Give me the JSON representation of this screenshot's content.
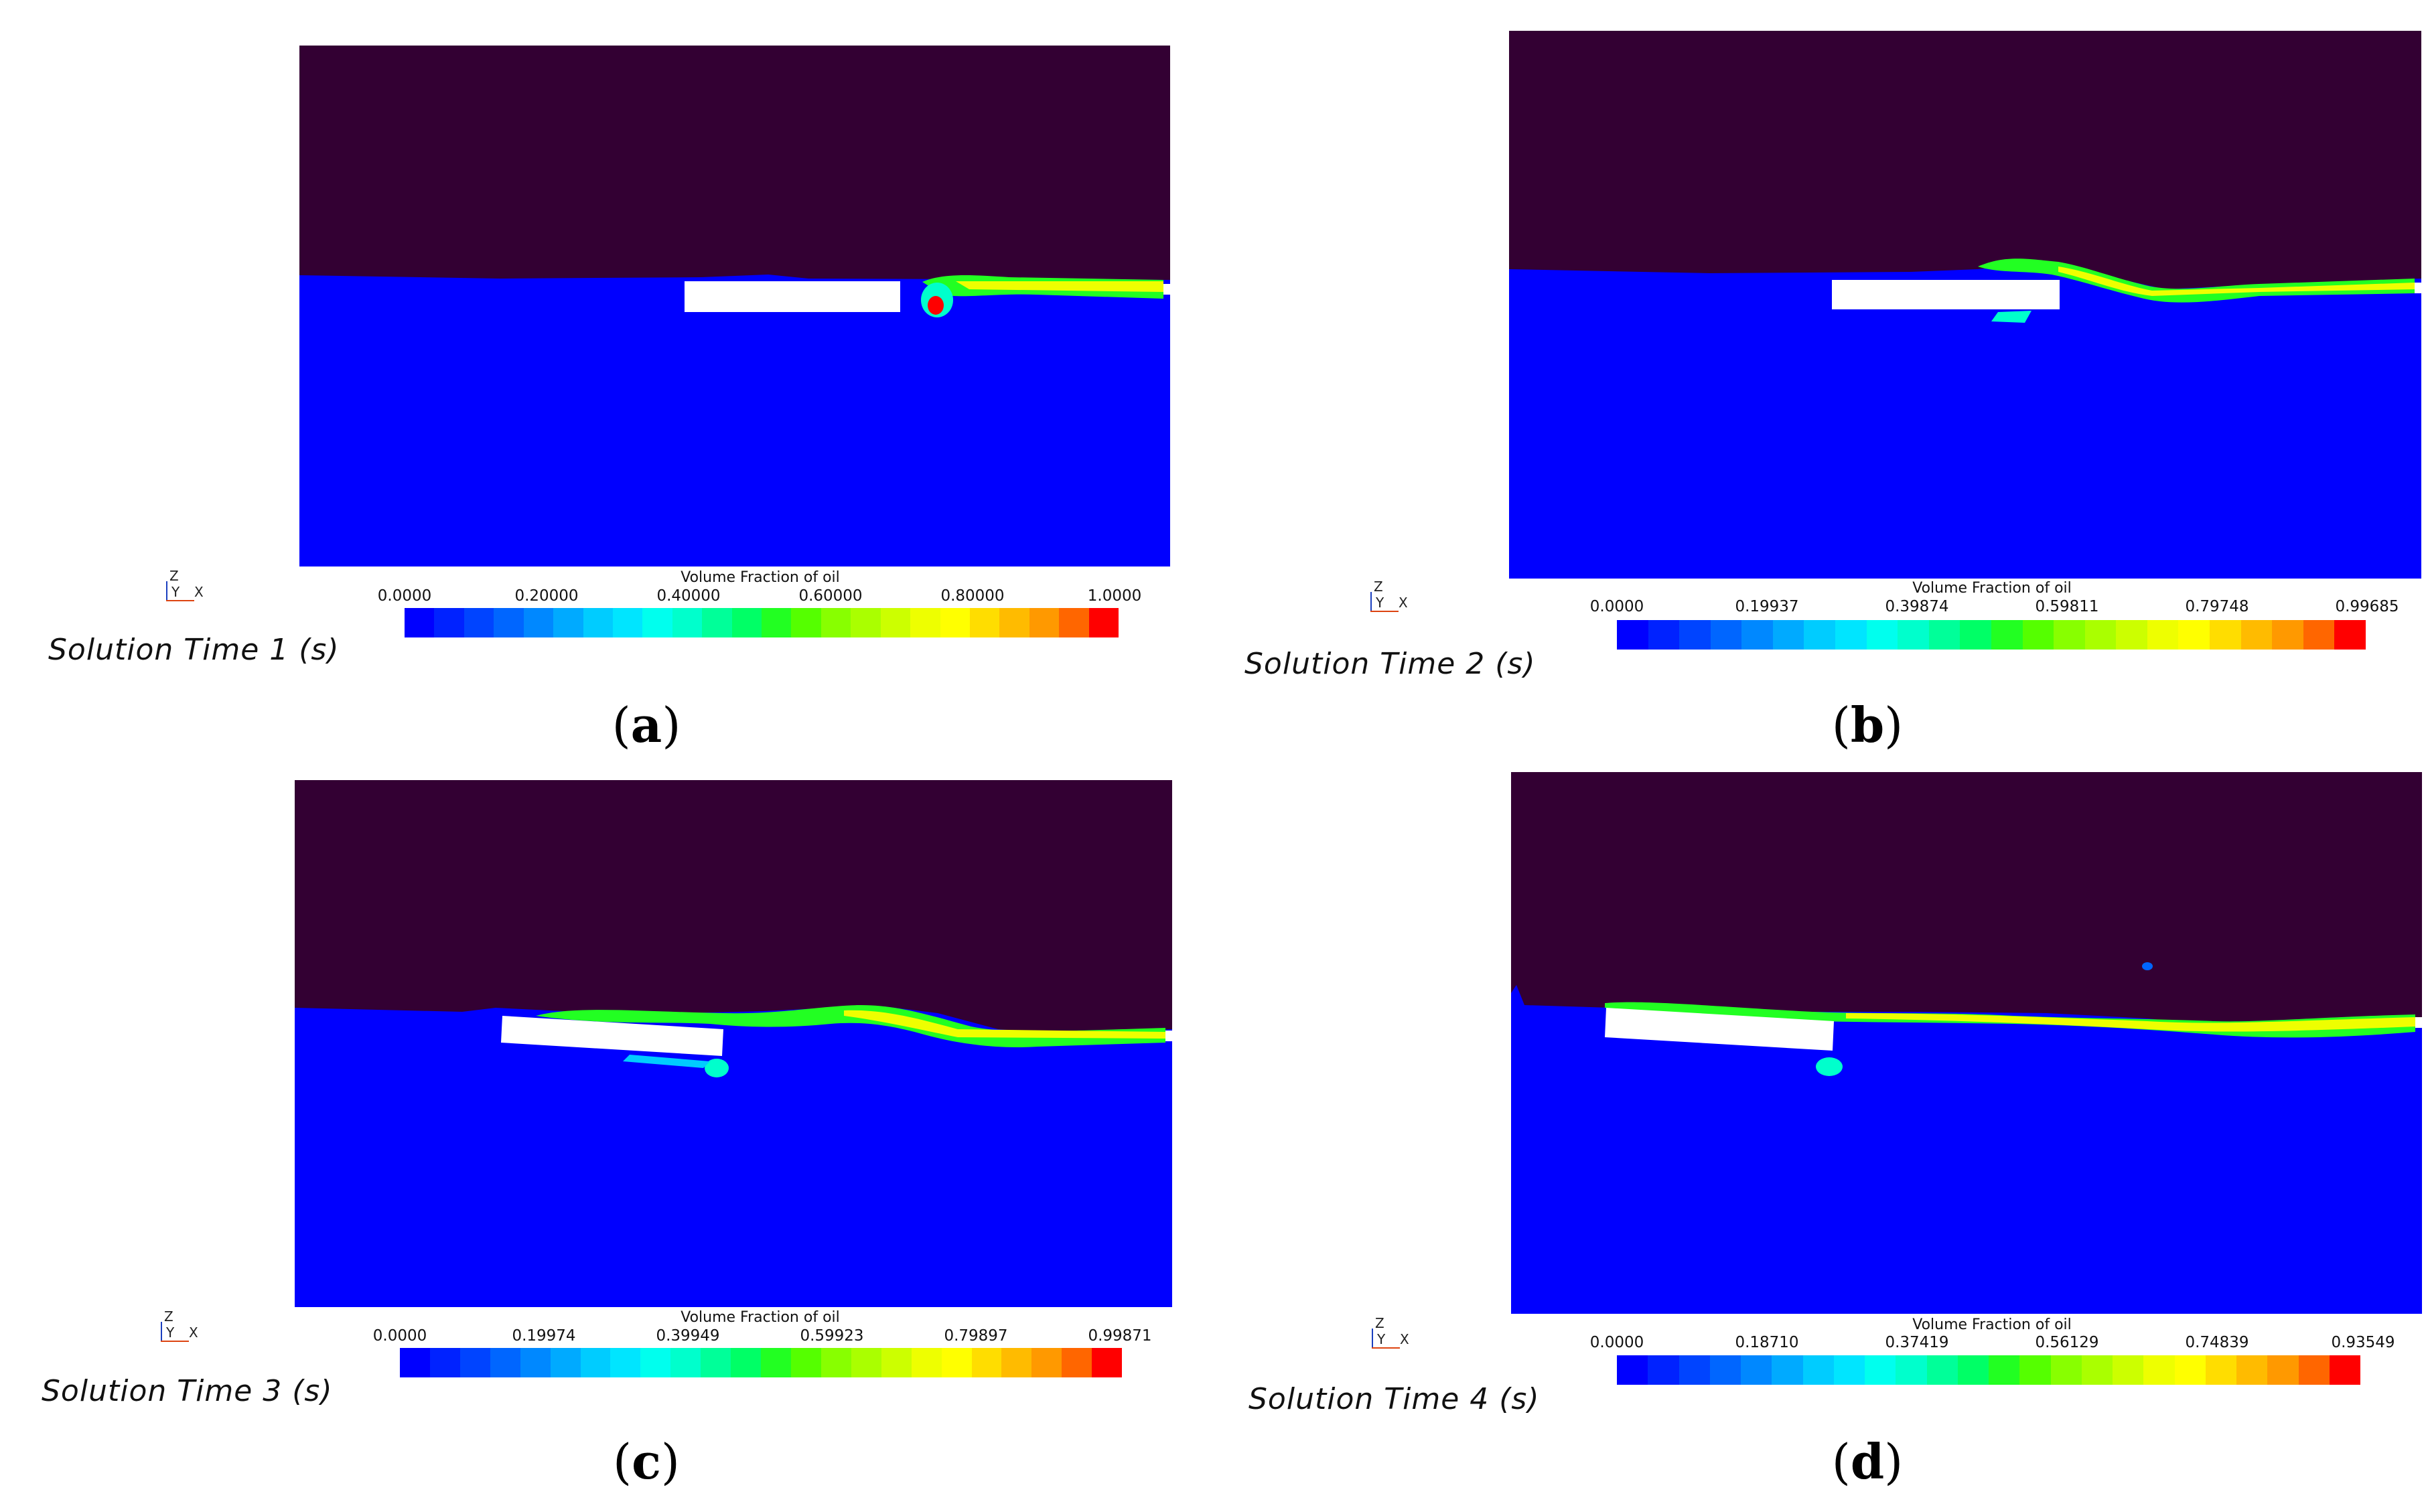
{
  "panels": [
    {
      "id": "a",
      "label": "a",
      "solution_time": "Solution Time 1 (s)",
      "legend_title": "Volume Fraction of oil",
      "ticks": [
        "0.0000",
        "0.20000",
        "0.40000",
        "0.60000",
        "0.80000",
        "1.0000"
      ],
      "axis": {
        "z": "Z",
        "y": "Y",
        "x": "X"
      }
    },
    {
      "id": "b",
      "label": "b",
      "solution_time": "Solution Time 2 (s)",
      "legend_title": "Volume Fraction of oil",
      "ticks": [
        "0.0000",
        "0.19937",
        "0.39874",
        "0.59811",
        "0.79748",
        "0.99685"
      ],
      "axis": {
        "z": "Z",
        "y": "Y",
        "x": "X"
      }
    },
    {
      "id": "c",
      "label": "c",
      "solution_time": "Solution Time 3 (s)",
      "legend_title": "Volume Fraction of oil",
      "ticks": [
        "0.0000",
        "0.19974",
        "0.39949",
        "0.59923",
        "0.79897",
        "0.99871"
      ],
      "axis": {
        "z": "Z",
        "y": "Y",
        "x": "X"
      }
    },
    {
      "id": "d",
      "label": "d",
      "solution_time": "Solution Time 4 (s)",
      "legend_title": "Volume Fraction of oil",
      "ticks": [
        "0.0000",
        "0.18710",
        "0.37419",
        "0.56129",
        "0.74839",
        "0.93549"
      ],
      "axis": {
        "z": "Z",
        "y": "Y",
        "x": "X"
      }
    }
  ],
  "colors": {
    "air": "#330033",
    "water": "#0000ff",
    "board": "#ffffff",
    "colormap": [
      "#0000ff",
      "#0022ff",
      "#0044ff",
      "#0066ff",
      "#0088ff",
      "#00aaff",
      "#00ccff",
      "#00e5ff",
      "#00ffee",
      "#00ffcc",
      "#00ff99",
      "#00ff66",
      "#22ff22",
      "#55ff00",
      "#88ff00",
      "#aaff00",
      "#ccff00",
      "#eeff00",
      "#ffff00",
      "#ffdd00",
      "#ffbb00",
      "#ff9900",
      "#ff6600",
      "#ff0000"
    ]
  }
}
